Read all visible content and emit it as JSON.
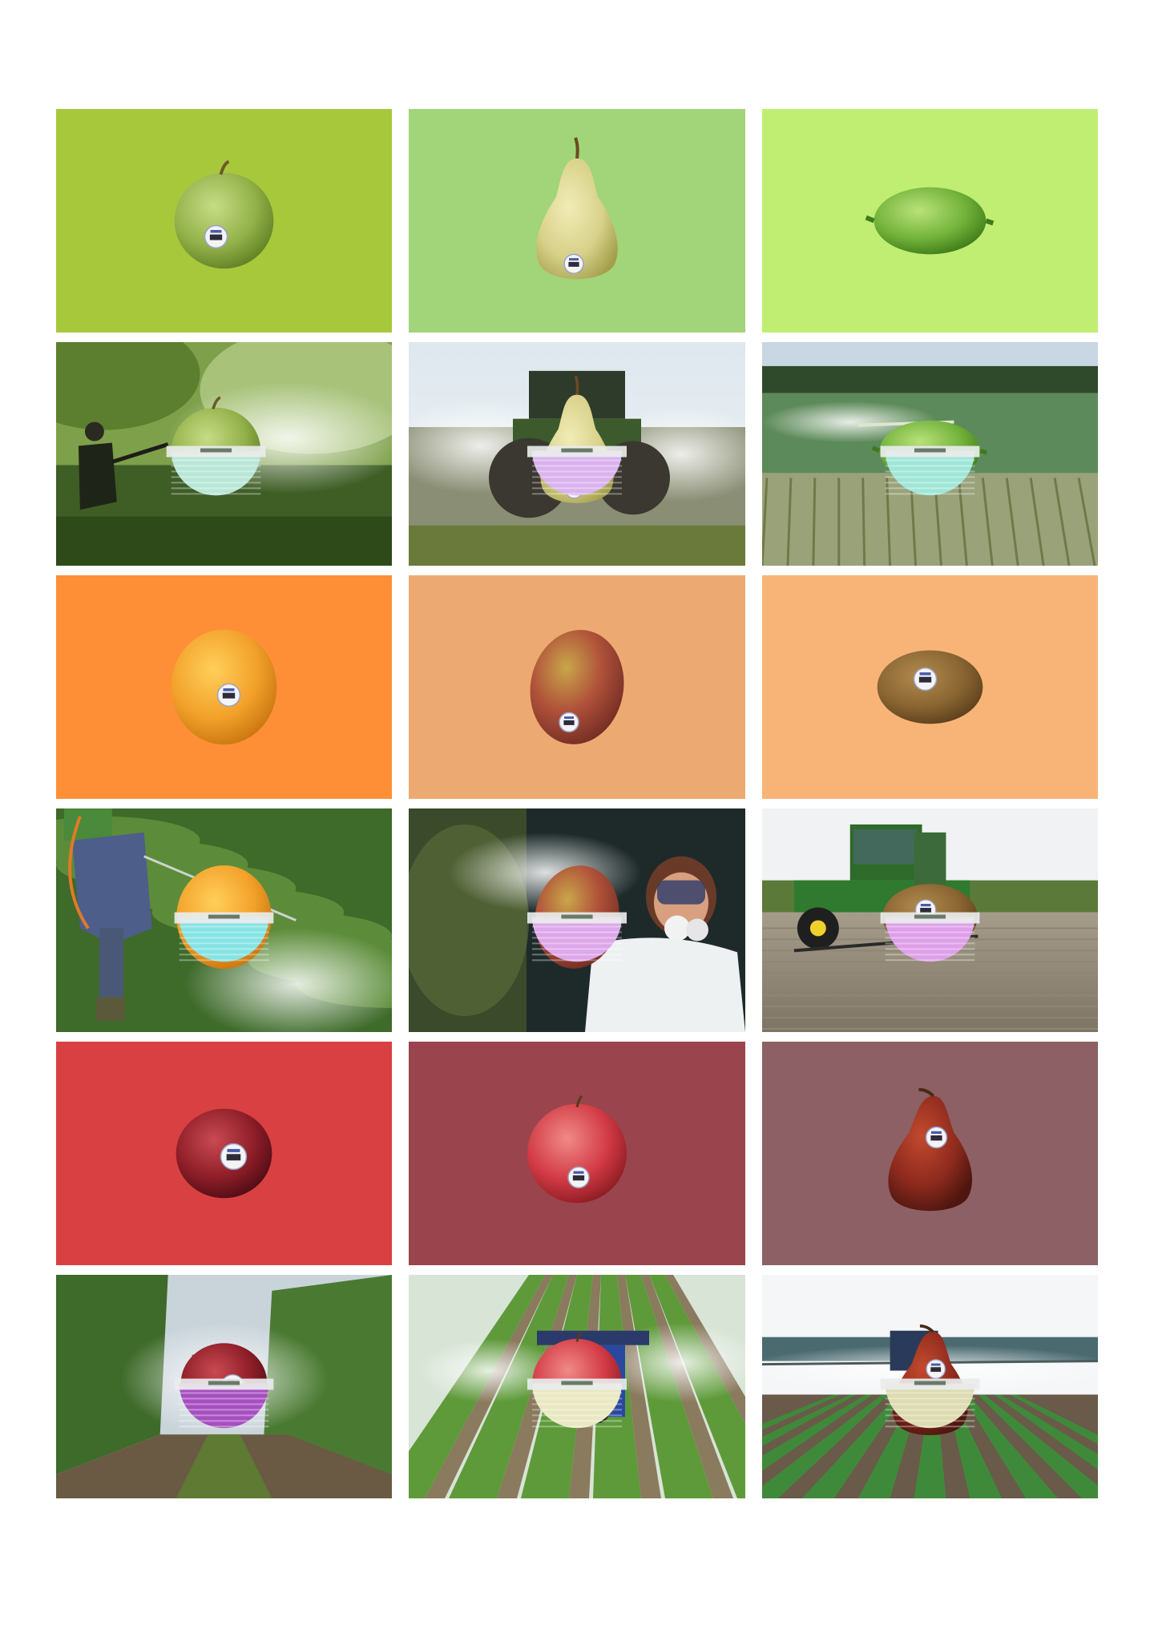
{
  "panels": [
    {
      "kind": "fruit",
      "fruit": "green-apple",
      "background": "#A8C83C"
    },
    {
      "kind": "fruit",
      "fruit": "green-pear",
      "background": "#A2D47A"
    },
    {
      "kind": "fruit",
      "fruit": "lime",
      "background": "#C0EE72"
    },
    {
      "kind": "scene",
      "scene": "orchard-hand-sprayer",
      "fruit": "green-apple",
      "glitch": "#B8E7D8"
    },
    {
      "kind": "scene",
      "scene": "tractor-spraying",
      "fruit": "green-pear",
      "glitch": "#D9B2EE"
    },
    {
      "kind": "scene",
      "scene": "crop-field-sprayer",
      "fruit": "lime",
      "glitch": "#9FE6D7"
    },
    {
      "kind": "fruit",
      "fruit": "orange",
      "background": "#FF8F37"
    },
    {
      "kind": "fruit",
      "fruit": "mango",
      "background": "#ECAA72"
    },
    {
      "kind": "fruit",
      "fruit": "kiwi",
      "background": "#F8B477"
    },
    {
      "kind": "scene",
      "scene": "backpack-sprayer-crops",
      "fruit": "orange",
      "glitch": "#86E3E4"
    },
    {
      "kind": "scene",
      "scene": "worker-gas-mask",
      "fruit": "mango",
      "glitch": "#DDA7EA"
    },
    {
      "kind": "scene",
      "scene": "green-sprayer-field",
      "fruit": "kiwi",
      "glitch": "#DE9FE9"
    },
    {
      "kind": "fruit",
      "fruit": "red-plum",
      "background": "#D94042"
    },
    {
      "kind": "fruit",
      "fruit": "red-apple",
      "background": "#9A444D"
    },
    {
      "kind": "fruit",
      "fruit": "red-pear",
      "background": "#8C6064"
    },
    {
      "kind": "scene",
      "scene": "orchard-rows-mist",
      "fruit": "red-plum",
      "glitch": "#A64FC0"
    },
    {
      "kind": "scene",
      "scene": "vineyard-sprayer",
      "fruit": "red-apple",
      "glitch": "#E9E8C2"
    },
    {
      "kind": "scene",
      "scene": "boom-sprayer-field",
      "fruit": "red-pear",
      "glitch": "#DDDBB0"
    }
  ]
}
